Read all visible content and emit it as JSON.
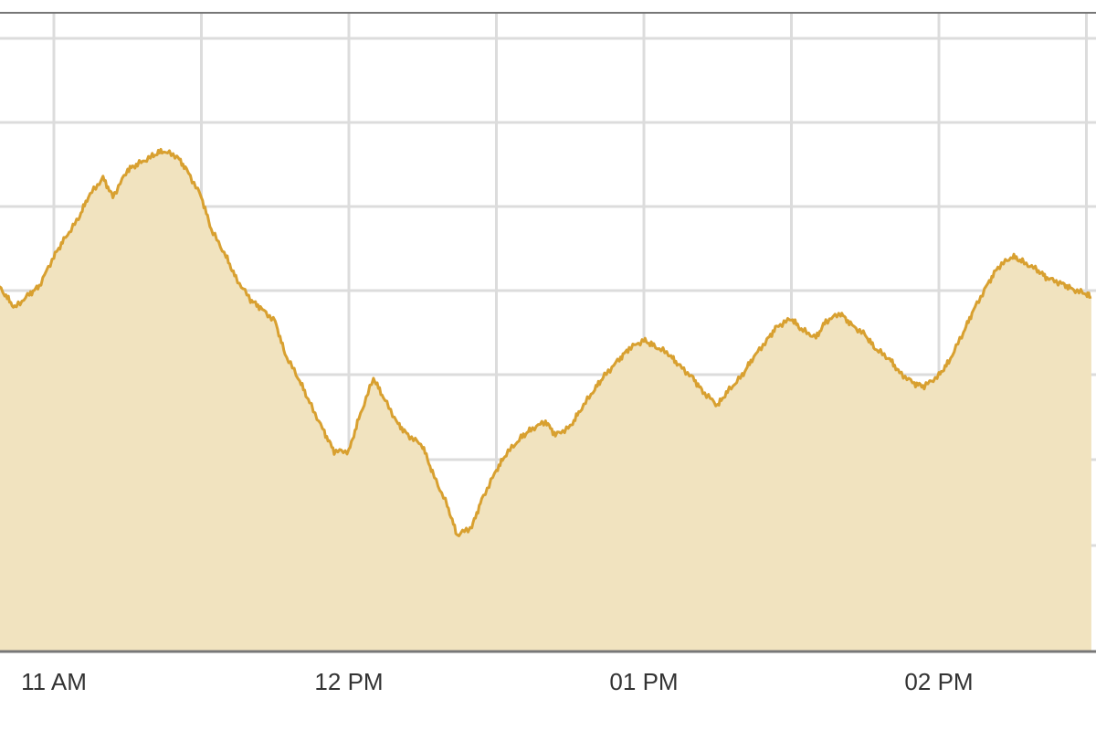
{
  "chart_data": {
    "type": "area",
    "title": "",
    "xlabel": "",
    "ylabel": "",
    "x_ticks": [
      "11 AM",
      "12 PM",
      "01 PM",
      "02 PM"
    ],
    "x_range": [
      "10:47",
      "14:31"
    ],
    "grid": true,
    "colors": {
      "line": "#d8a030",
      "fill": "#f1e3bf",
      "grid": "#dcdcdc",
      "axis": "#777777"
    },
    "series": [
      {
        "x": [
          "10:47",
          "10:50",
          "10:52",
          "10:55",
          "10:57",
          "11:00",
          "11:02",
          "11:05",
          "11:07",
          "11:10",
          "11:12",
          "11:15",
          "11:17",
          "11:20",
          "11:22",
          "11:25",
          "11:27",
          "11:30",
          "11:32",
          "11:35",
          "11:37",
          "11:40",
          "11:42",
          "11:45",
          "11:47",
          "11:50",
          "11:52",
          "11:55",
          "11:57",
          "12:00",
          "12:02",
          "12:05",
          "12:07",
          "12:10",
          "12:12",
          "12:15",
          "12:17",
          "12:20",
          "12:22",
          "12:25",
          "12:27",
          "12:30",
          "12:32",
          "12:35",
          "12:37",
          "12:40",
          "12:42",
          "12:45",
          "12:47",
          "12:50",
          "12:52",
          "12:55",
          "12:57",
          "13:00",
          "13:02",
          "13:05",
          "13:07",
          "13:10",
          "13:12",
          "13:15",
          "13:17",
          "13:20",
          "13:22",
          "13:25",
          "13:27",
          "13:30",
          "13:32",
          "13:35",
          "13:37",
          "13:40",
          "13:42",
          "13:45",
          "13:47",
          "13:50",
          "13:52",
          "13:55",
          "13:57",
          "14:00",
          "14:02",
          "14:05",
          "14:07",
          "14:10",
          "14:12",
          "14:15",
          "14:17",
          "14:20",
          "14:22",
          "14:25",
          "14:27",
          "14:30",
          "14:31"
        ],
        "values": [
          37.4,
          36.6,
          36.1,
          36.6,
          36.9,
          38.0,
          38.6,
          39.4,
          40.2,
          40.9,
          40.2,
          41.2,
          41.4,
          41.7,
          41.9,
          41.7,
          41.2,
          40.2,
          39.0,
          38.0,
          37.2,
          36.4,
          36.1,
          35.6,
          34.4,
          33.4,
          32.6,
          31.5,
          30.8,
          30.8,
          32.0,
          33.5,
          32.8,
          31.8,
          31.4,
          31.0,
          30.0,
          28.8,
          27.7,
          28.0,
          29.0,
          30.1,
          30.7,
          31.3,
          31.6,
          31.9,
          31.4,
          31.7,
          32.3,
          33.1,
          33.6,
          34.2,
          34.6,
          34.9,
          34.7,
          34.4,
          34.0,
          33.5,
          33.0,
          32.5,
          33.0,
          33.6,
          34.2,
          34.9,
          35.4,
          35.7,
          35.3,
          35.0,
          35.6,
          35.9,
          35.5,
          35.1,
          34.6,
          34.2,
          33.7,
          33.3,
          33.2,
          33.6,
          34.1,
          35.2,
          36.0,
          37.0,
          37.6,
          38.0,
          37.8,
          37.5,
          37.2,
          37.0,
          36.8,
          36.6,
          36.5
        ]
      }
    ]
  }
}
